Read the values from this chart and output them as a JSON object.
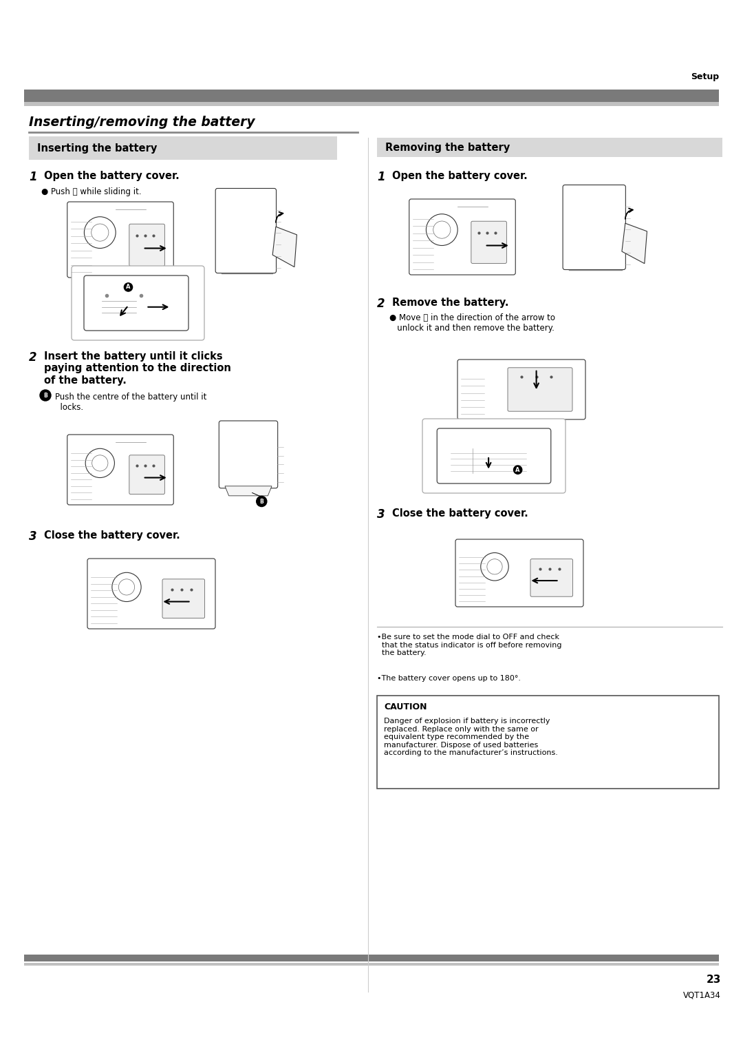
{
  "page_bg": "#ffffff",
  "page_width": 10.8,
  "page_height": 15.26,
  "top_label": "Setup",
  "main_title": "Inserting/removing the battery",
  "left_section_title": "Inserting the battery",
  "right_section_title": "Removing the battery",
  "left_steps": [
    {
      "number": "1",
      "heading": "Open the battery cover.",
      "bullets": [
        "Push Ⓐ while sliding it."
      ]
    },
    {
      "number": "2",
      "heading": "Insert the battery until it clicks\npaying attention to the direction\nof the battery.",
      "bullets": [
        "Ⓑ Push the centre of the battery until it\n  locks."
      ]
    },
    {
      "number": "3",
      "heading": "Close the battery cover.",
      "bullets": []
    }
  ],
  "right_steps": [
    {
      "number": "1",
      "heading": "Open the battery cover.",
      "bullets": []
    },
    {
      "number": "2",
      "heading": "Remove the battery.",
      "bullets": [
        "Move Ⓐ in the direction of the arrow to\n  unlock it and then remove the battery."
      ]
    },
    {
      "number": "3",
      "heading": "Close the battery cover.",
      "bullets": []
    }
  ],
  "right_notes": [
    "•Be sure to set the mode dial to OFF and check\n  that the status indicator is off before removing\n  the battery.",
    "•The battery cover opens up to 180°."
  ],
  "caution_title": "CAUTION",
  "caution_text": "Danger of explosion if battery is incorrectly\nreplaced. Replace only with the same or\nequivalent type recommended by the\nmanufacturer. Dispose of used batteries\naccording to the manufacturer’s instructions.",
  "page_number": "23",
  "page_code": "VQT1A34",
  "header_bar_color": "#7a7a7a",
  "header_bar_light": "#c0c0c0",
  "section_bg_left": "#d8d8d8",
  "section_bg_right": "#d8d8d8",
  "caution_border": "#555555",
  "divider_color": "#7a7a7a"
}
